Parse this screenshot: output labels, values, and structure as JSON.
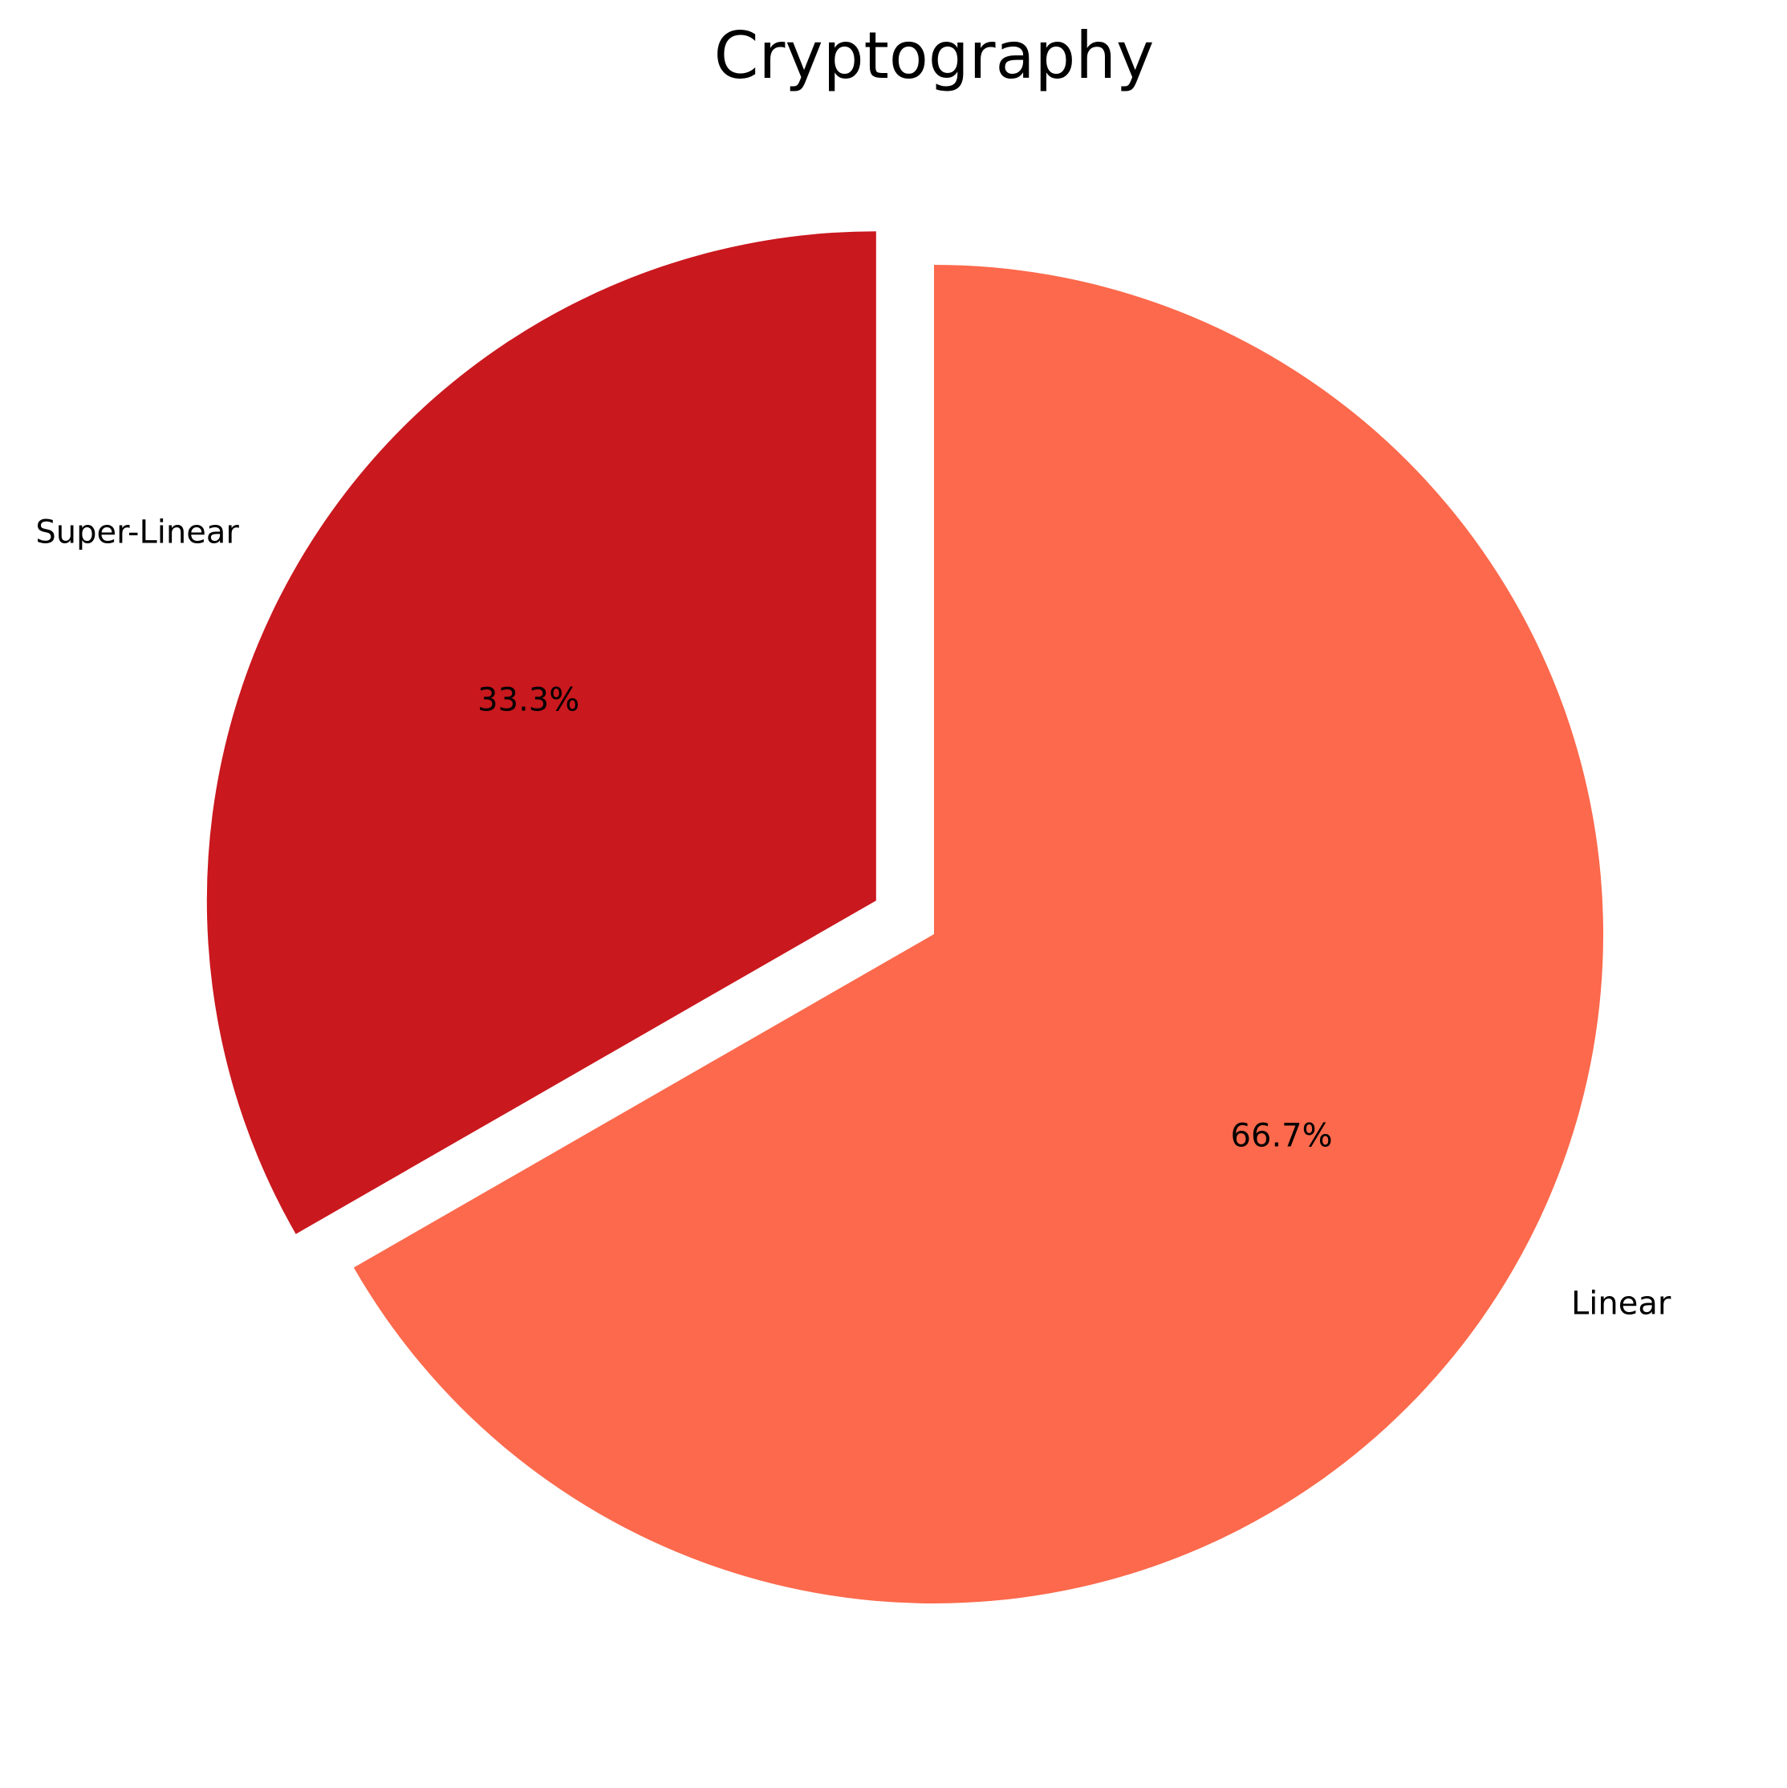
{
  "chart_data": {
    "type": "pie",
    "title": "Cryptography",
    "categories": [
      "Super-Linear",
      "Linear"
    ],
    "values": [
      33.3,
      66.7
    ],
    "value_labels": [
      "33.3%",
      "66.7%"
    ],
    "colors": [
      "#c9181e",
      "#fc694c"
    ],
    "exploded": [
      "Super-Linear"
    ],
    "start_angle_deg": 90,
    "direction": "counterclockwise",
    "legend": "none"
  }
}
